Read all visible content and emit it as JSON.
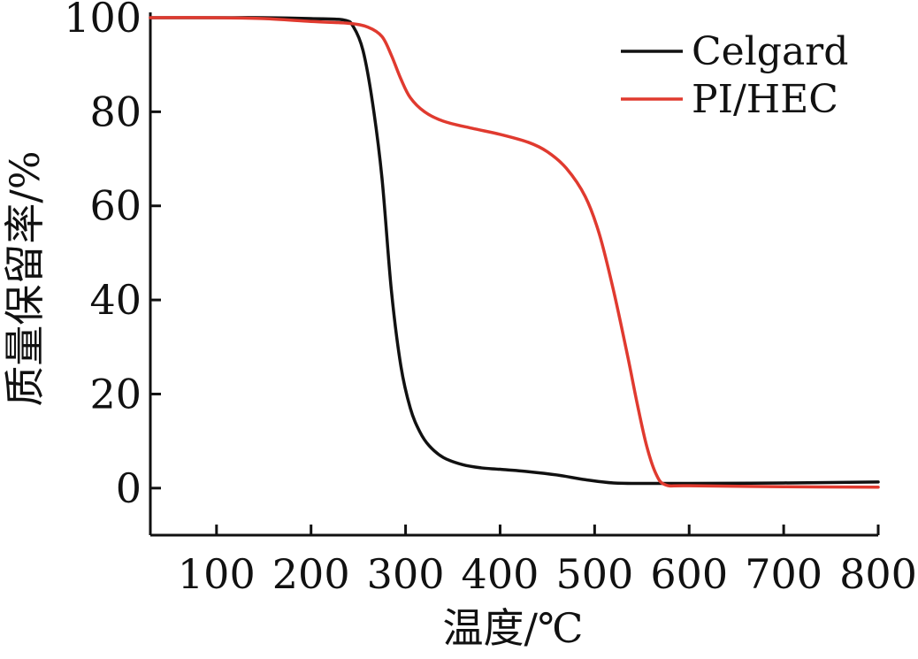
{
  "chart_data": {
    "type": "line",
    "xlabel": "温度/℃",
    "ylabel": "质量保留率/%",
    "xlim": [
      30,
      800
    ],
    "ylim": [
      -10,
      100
    ],
    "x_ticks": [
      100,
      200,
      300,
      400,
      500,
      600,
      700,
      800
    ],
    "y_ticks": [
      0,
      20,
      40,
      60,
      80,
      100
    ],
    "grid": false,
    "legend_position": "top-right",
    "colors": {
      "axis": "#111111",
      "celgard": "#111111",
      "pi_hec": "#e03a2f"
    },
    "series": [
      {
        "name": "Celgard",
        "color": "#111111",
        "points": [
          [
            30,
            100
          ],
          [
            100,
            100
          ],
          [
            150,
            100
          ],
          [
            200,
            99.8
          ],
          [
            235,
            99.5
          ],
          [
            245,
            98
          ],
          [
            255,
            93
          ],
          [
            265,
            82
          ],
          [
            275,
            66
          ],
          [
            285,
            42
          ],
          [
            295,
            26
          ],
          [
            305,
            17
          ],
          [
            315,
            12
          ],
          [
            325,
            9
          ],
          [
            340,
            6.5
          ],
          [
            360,
            5
          ],
          [
            380,
            4.3
          ],
          [
            400,
            4
          ],
          [
            430,
            3.5
          ],
          [
            460,
            2.8
          ],
          [
            490,
            1.8
          ],
          [
            520,
            1.1
          ],
          [
            560,
            1
          ],
          [
            600,
            1
          ],
          [
            700,
            1.1
          ],
          [
            800,
            1.3
          ]
        ]
      },
      {
        "name": "PI/HEC",
        "color": "#e03a2f",
        "points": [
          [
            30,
            100
          ],
          [
            100,
            100
          ],
          [
            150,
            99.8
          ],
          [
            200,
            99.2
          ],
          [
            240,
            98.8
          ],
          [
            260,
            98
          ],
          [
            275,
            96
          ],
          [
            285,
            92
          ],
          [
            295,
            87
          ],
          [
            305,
            83
          ],
          [
            320,
            80
          ],
          [
            340,
            78
          ],
          [
            370,
            76.5
          ],
          [
            400,
            75.2
          ],
          [
            430,
            73.5
          ],
          [
            450,
            71.5
          ],
          [
            470,
            68
          ],
          [
            490,
            62
          ],
          [
            505,
            54
          ],
          [
            520,
            42
          ],
          [
            535,
            28
          ],
          [
            545,
            18
          ],
          [
            555,
            9
          ],
          [
            565,
            3
          ],
          [
            575,
            0.7
          ],
          [
            600,
            0.5
          ],
          [
            700,
            0.3
          ],
          [
            800,
            0.2
          ]
        ]
      }
    ]
  }
}
